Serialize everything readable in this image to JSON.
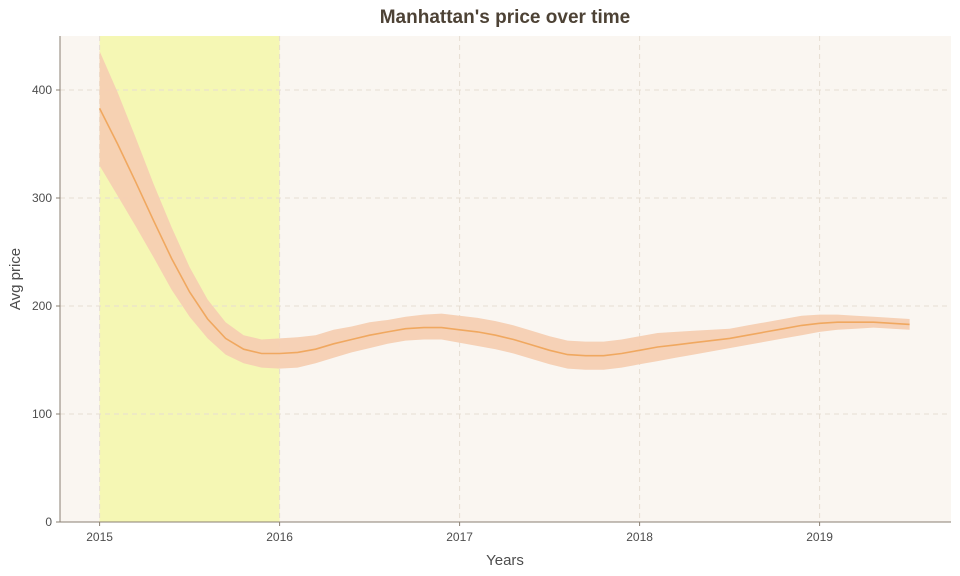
{
  "chart_data": {
    "type": "line",
    "title": "Manhattan's price over time",
    "xlabel": "Years",
    "ylabel": "Avg price",
    "x_ticks": [
      "2015",
      "2016",
      "2017",
      "2018",
      "2019"
    ],
    "y_ticks": [
      "0",
      "100",
      "200",
      "300",
      "400"
    ],
    "xlim": [
      2014.78,
      2019.73
    ],
    "ylim": [
      0,
      450
    ],
    "grid": true,
    "highlight_region": {
      "x_start": 2015.0,
      "x_end": 2016.0,
      "color": "#f5f7b4"
    },
    "colors": {
      "panel": "#faf6f1",
      "line": "#f0a860",
      "band": "#f5cfb2",
      "grid": "#e6ddd2",
      "axis": "#8a7f72"
    },
    "series": [
      {
        "x": [
          2015.0,
          2015.1,
          2015.2,
          2015.3,
          2015.4,
          2015.5,
          2015.6,
          2015.7,
          2015.8,
          2015.9,
          2016.0,
          2016.1,
          2016.2,
          2016.3,
          2016.4,
          2016.5,
          2016.6,
          2016.7,
          2016.8,
          2016.9,
          2017.0,
          2017.1,
          2017.2,
          2017.3,
          2017.4,
          2017.5,
          2017.6,
          2017.7,
          2017.8,
          2017.9,
          2018.0,
          2018.1,
          2018.2,
          2018.3,
          2018.4,
          2018.5,
          2018.6,
          2018.7,
          2018.8,
          2018.9,
          2019.0,
          2019.1,
          2019.2,
          2019.3,
          2019.4,
          2019.5
        ],
        "y": [
          383,
          350,
          315,
          279,
          244,
          213,
          188,
          170,
          160,
          156,
          156,
          157,
          160,
          165,
          169,
          173,
          176,
          179,
          180,
          180,
          178,
          176,
          173,
          169,
          164,
          159,
          155,
          154,
          154,
          156,
          159,
          162,
          164,
          166,
          168,
          170,
          173,
          176,
          179,
          182,
          184,
          185,
          185,
          185,
          184,
          183
        ],
        "lower": [
          330,
          302,
          274,
          245,
          215,
          190,
          170,
          155,
          147,
          143,
          142,
          143,
          147,
          152,
          157,
          161,
          165,
          168,
          169,
          169,
          166,
          163,
          160,
          156,
          151,
          146,
          142,
          141,
          141,
          143,
          146,
          149,
          152,
          155,
          158,
          161,
          164,
          167,
          170,
          173,
          176,
          178,
          179,
          180,
          179,
          178
        ],
        "upper": [
          436,
          398,
          356,
          313,
          273,
          236,
          206,
          185,
          173,
          169,
          170,
          171,
          173,
          178,
          181,
          185,
          187,
          190,
          192,
          193,
          191,
          189,
          186,
          182,
          177,
          172,
          168,
          167,
          167,
          169,
          172,
          175,
          176,
          177,
          178,
          179,
          182,
          185,
          188,
          191,
          192,
          192,
          191,
          190,
          189,
          188
        ]
      }
    ]
  }
}
